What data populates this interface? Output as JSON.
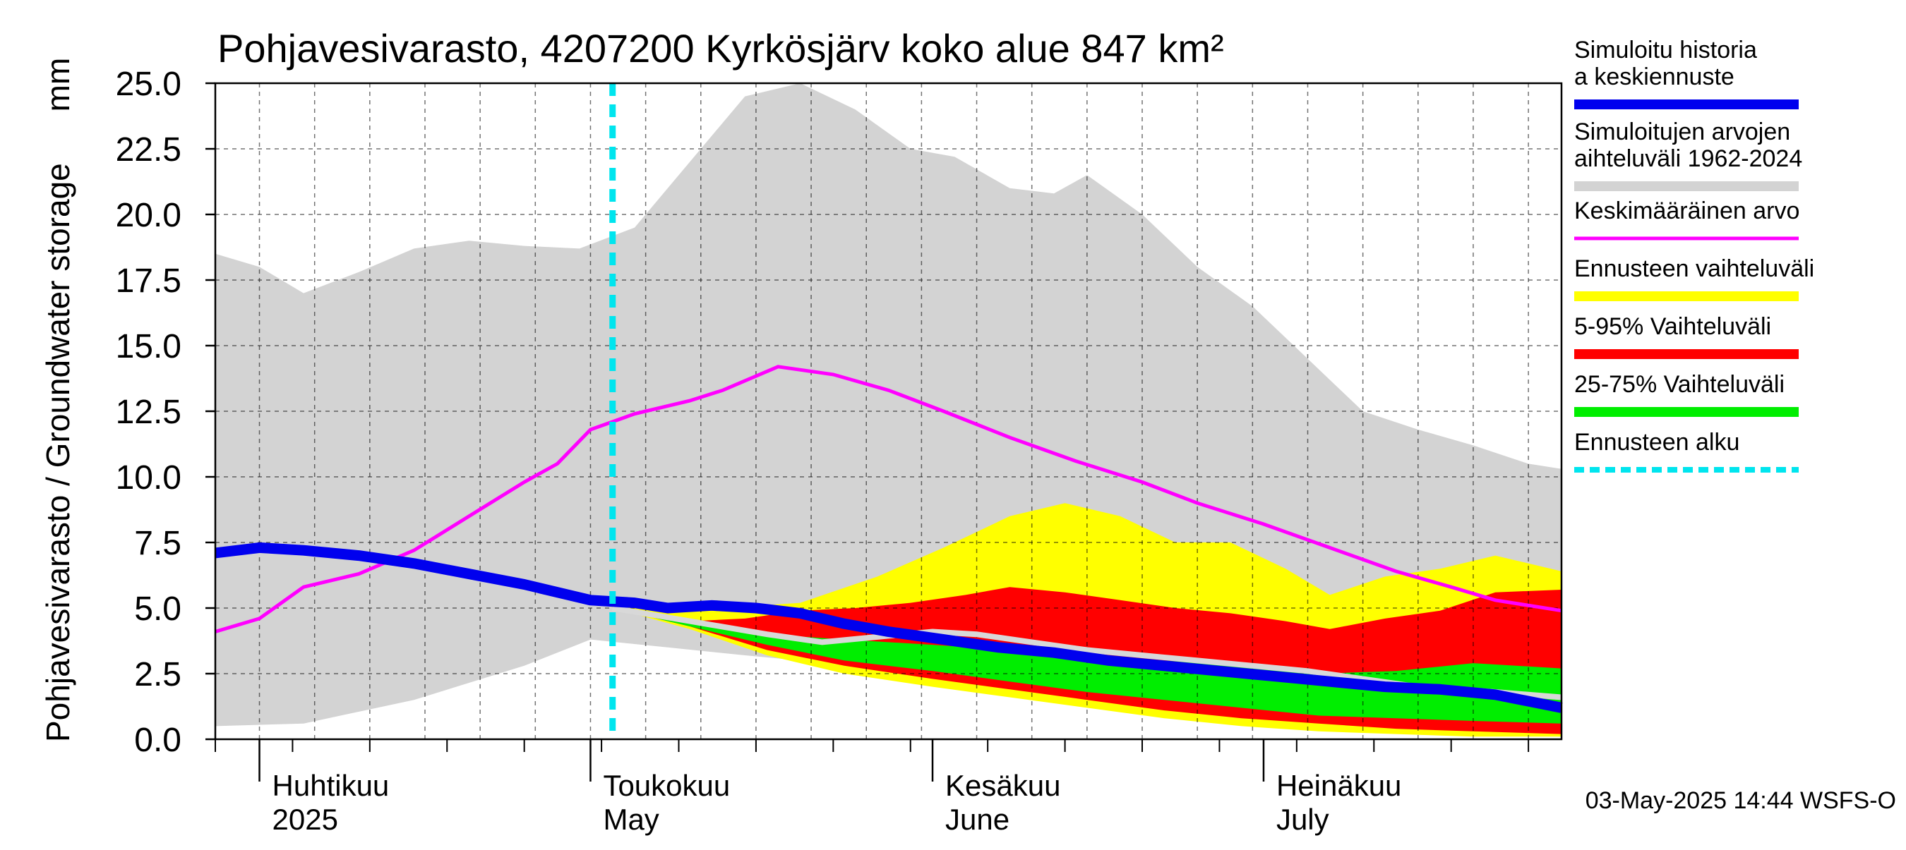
{
  "chart_data": {
    "type": "area",
    "title": "Pohjavesivarasto, 4207200 Kyrkösjärv koko alue 847 km²",
    "ylabel": "Pohjavesivarasto / Groundwater storage",
    "yunit": "mm",
    "ylim": [
      0,
      25
    ],
    "yticks": [
      "0.0",
      "2.5",
      "5.0",
      "7.5",
      "10.0",
      "12.5",
      "15.0",
      "17.5",
      "20.0",
      "22.5",
      "25.0"
    ],
    "grid": true,
    "xlim": [
      "2025-03-28",
      "2025-07-28"
    ],
    "months": [
      {
        "date": "2025-04-01",
        "fi": "Huhtikuu",
        "en": "2025"
      },
      {
        "date": "2025-05-01",
        "fi": "Toukokuu",
        "en": "May"
      },
      {
        "date": "2025-06-01",
        "fi": "Kesäkuu",
        "en": "June"
      },
      {
        "date": "2025-07-01",
        "fi": "Heinäkuu",
        "en": "July"
      }
    ],
    "forecast_start": "2025-05-03",
    "colors": {
      "history": "#0000ee",
      "range": "#d3d3d3",
      "mean": "#ff00ff",
      "forecast_range": "#ffff00",
      "p5_95": "#ff0000",
      "p25_75": "#00ee00",
      "forecast_start": "#00e5ee",
      "median": "#d8d8d8"
    },
    "legend": [
      {
        "label": "Simuloitu historia ja keskiennuste",
        "key": "history"
      },
      {
        "label": "Simuloitujen arvojen vaihteluväli 1962-2024",
        "key": "range"
      },
      {
        "label": "Keskimääräinen arvo",
        "key": "mean"
      },
      {
        "label": "Ennusteen vaihteluväli",
        "key": "forecast_range"
      },
      {
        "label": "5-95% Vaihteluväli",
        "key": "p5_95"
      },
      {
        "label": "25-75% Vaihteluväli",
        "key": "p25_75"
      },
      {
        "label": "Ennusteen alku",
        "key": "forecast_start"
      }
    ],
    "footer": "03-May-2025 14:44 WSFS-O",
    "series": {
      "range_upper": [
        [
          "2025-03-28",
          18.5
        ],
        [
          "2025-04-01",
          18.0
        ],
        [
          "2025-04-05",
          17.0
        ],
        [
          "2025-04-10",
          17.8
        ],
        [
          "2025-04-15",
          18.7
        ],
        [
          "2025-04-20",
          19.0
        ],
        [
          "2025-04-25",
          18.8
        ],
        [
          "2025-04-30",
          18.7
        ],
        [
          "2025-05-05",
          19.5
        ],
        [
          "2025-05-10",
          22.0
        ],
        [
          "2025-05-15",
          24.5
        ],
        [
          "2025-05-20",
          25.0
        ],
        [
          "2025-05-25",
          24.0
        ],
        [
          "2025-05-30",
          22.5
        ],
        [
          "2025-06-03",
          22.2
        ],
        [
          "2025-06-08",
          21.0
        ],
        [
          "2025-06-12",
          20.8
        ],
        [
          "2025-06-15",
          21.5
        ],
        [
          "2025-06-20",
          20.0
        ],
        [
          "2025-06-25",
          18.0
        ],
        [
          "2025-06-30",
          16.5
        ],
        [
          "2025-07-05",
          14.5
        ],
        [
          "2025-07-10",
          12.5
        ],
        [
          "2025-07-15",
          11.8
        ],
        [
          "2025-07-20",
          11.2
        ],
        [
          "2025-07-25",
          10.5
        ],
        [
          "2025-07-28",
          10.3
        ]
      ],
      "range_lower": [
        [
          "2025-03-28",
          0.5
        ],
        [
          "2025-04-05",
          0.6
        ],
        [
          "2025-04-15",
          1.5
        ],
        [
          "2025-04-25",
          2.8
        ],
        [
          "2025-05-01",
          3.8
        ],
        [
          "2025-05-08",
          3.5
        ],
        [
          "2025-05-15",
          3.2
        ],
        [
          "2025-05-20",
          3.0
        ],
        [
          "2025-05-25",
          3.1
        ],
        [
          "2025-06-01",
          2.8
        ],
        [
          "2025-06-10",
          2.3
        ],
        [
          "2025-06-20",
          1.7
        ],
        [
          "2025-07-01",
          1.2
        ],
        [
          "2025-07-10",
          0.6
        ],
        [
          "2025-07-20",
          0.2
        ],
        [
          "2025-07-28",
          0.1
        ]
      ],
      "mean": [
        [
          "2025-03-28",
          4.1
        ],
        [
          "2025-04-01",
          4.6
        ],
        [
          "2025-04-05",
          5.8
        ],
        [
          "2025-04-10",
          6.3
        ],
        [
          "2025-04-15",
          7.2
        ],
        [
          "2025-04-20",
          8.5
        ],
        [
          "2025-04-25",
          9.8
        ],
        [
          "2025-04-28",
          10.5
        ],
        [
          "2025-05-01",
          11.8
        ],
        [
          "2025-05-05",
          12.4
        ],
        [
          "2025-05-10",
          12.9
        ],
        [
          "2025-05-13",
          13.3
        ],
        [
          "2025-05-18",
          14.2
        ],
        [
          "2025-05-23",
          13.9
        ],
        [
          "2025-05-28",
          13.3
        ],
        [
          "2025-06-02",
          12.5
        ],
        [
          "2025-06-08",
          11.5
        ],
        [
          "2025-06-14",
          10.6
        ],
        [
          "2025-06-20",
          9.8
        ],
        [
          "2025-06-25",
          9.0
        ],
        [
          "2025-07-01",
          8.2
        ],
        [
          "2025-07-07",
          7.3
        ],
        [
          "2025-07-13",
          6.4
        ],
        [
          "2025-07-18",
          5.8
        ],
        [
          "2025-07-22",
          5.3
        ],
        [
          "2025-07-28",
          4.9
        ]
      ],
      "history": [
        [
          "2025-03-28",
          7.1
        ],
        [
          "2025-04-01",
          7.3
        ],
        [
          "2025-04-05",
          7.2
        ],
        [
          "2025-04-10",
          7.0
        ],
        [
          "2025-04-15",
          6.7
        ],
        [
          "2025-04-20",
          6.3
        ],
        [
          "2025-04-25",
          5.9
        ],
        [
          "2025-04-28",
          5.6
        ],
        [
          "2025-05-01",
          5.3
        ],
        [
          "2025-05-05",
          5.2
        ],
        [
          "2025-05-08",
          5.0
        ],
        [
          "2025-05-12",
          5.1
        ],
        [
          "2025-05-16",
          5.0
        ],
        [
          "2025-05-20",
          4.8
        ],
        [
          "2025-05-24",
          4.4
        ],
        [
          "2025-05-28",
          4.1
        ],
        [
          "2025-06-02",
          3.8
        ],
        [
          "2025-06-07",
          3.5
        ],
        [
          "2025-06-12",
          3.3
        ],
        [
          "2025-06-17",
          3.0
        ],
        [
          "2025-06-22",
          2.8
        ],
        [
          "2025-06-27",
          2.6
        ],
        [
          "2025-07-02",
          2.4
        ],
        [
          "2025-07-07",
          2.2
        ],
        [
          "2025-07-12",
          2.0
        ],
        [
          "2025-07-17",
          1.9
        ],
        [
          "2025-07-22",
          1.7
        ],
        [
          "2025-07-28",
          1.2
        ]
      ],
      "forecast_upper": [
        [
          "2025-05-03",
          5.1
        ],
        [
          "2025-05-13",
          5.0
        ],
        [
          "2025-05-20",
          5.2
        ],
        [
          "2025-05-27",
          6.2
        ],
        [
          "2025-06-02",
          7.3
        ],
        [
          "2025-06-08",
          8.5
        ],
        [
          "2025-06-13",
          9.0
        ],
        [
          "2025-06-18",
          8.5
        ],
        [
          "2025-06-23",
          7.5
        ],
        [
          "2025-06-28",
          7.5
        ],
        [
          "2025-07-03",
          6.5
        ],
        [
          "2025-07-07",
          5.5
        ],
        [
          "2025-07-12",
          6.2
        ],
        [
          "2025-07-17",
          6.5
        ],
        [
          "2025-07-22",
          7.0
        ],
        [
          "2025-07-28",
          6.4
        ]
      ],
      "forecast_lower": [
        [
          "2025-05-03",
          5.0
        ],
        [
          "2025-05-10",
          4.2
        ],
        [
          "2025-05-17",
          3.2
        ],
        [
          "2025-05-24",
          2.5
        ],
        [
          "2025-06-01",
          2.0
        ],
        [
          "2025-06-08",
          1.6
        ],
        [
          "2025-06-15",
          1.2
        ],
        [
          "2025-06-22",
          0.8
        ],
        [
          "2025-06-29",
          0.5
        ],
        [
          "2025-07-06",
          0.3
        ],
        [
          "2025-07-13",
          0.2
        ],
        [
          "2025-07-20",
          0.1
        ],
        [
          "2025-07-28",
          0.1
        ]
      ],
      "p95": [
        [
          "2025-05-03",
          5.0
        ],
        [
          "2025-05-10",
          4.5
        ],
        [
          "2025-05-15",
          4.6
        ],
        [
          "2025-05-20",
          4.9
        ],
        [
          "2025-05-25",
          5.0
        ],
        [
          "2025-05-30",
          5.2
        ],
        [
          "2025-06-04",
          5.5
        ],
        [
          "2025-06-08",
          5.8
        ],
        [
          "2025-06-13",
          5.6
        ],
        [
          "2025-06-18",
          5.3
        ],
        [
          "2025-06-23",
          5.0
        ],
        [
          "2025-06-28",
          4.8
        ],
        [
          "2025-07-03",
          4.5
        ],
        [
          "2025-07-07",
          4.2
        ],
        [
          "2025-07-12",
          4.6
        ],
        [
          "2025-07-17",
          4.9
        ],
        [
          "2025-07-22",
          5.6
        ],
        [
          "2025-07-28",
          5.7
        ]
      ],
      "p5": [
        [
          "2025-05-03",
          5.0
        ],
        [
          "2025-05-10",
          4.3
        ],
        [
          "2025-05-17",
          3.4
        ],
        [
          "2025-05-24",
          2.8
        ],
        [
          "2025-06-01",
          2.3
        ],
        [
          "2025-06-08",
          1.9
        ],
        [
          "2025-06-15",
          1.5
        ],
        [
          "2025-06-22",
          1.1
        ],
        [
          "2025-06-29",
          0.8
        ],
        [
          "2025-07-06",
          0.6
        ],
        [
          "2025-07-13",
          0.4
        ],
        [
          "2025-07-20",
          0.3
        ],
        [
          "2025-07-28",
          0.2
        ]
      ],
      "p75": [
        [
          "2025-05-03",
          5.0
        ],
        [
          "2025-05-10",
          4.4
        ],
        [
          "2025-05-17",
          4.0
        ],
        [
          "2025-05-24",
          3.8
        ],
        [
          "2025-06-01",
          3.6
        ],
        [
          "2025-06-08",
          3.4
        ],
        [
          "2025-06-15",
          3.2
        ],
        [
          "2025-06-22",
          3.0
        ],
        [
          "2025-06-29",
          2.8
        ],
        [
          "2025-07-06",
          2.5
        ],
        [
          "2025-07-13",
          2.6
        ],
        [
          "2025-07-20",
          2.9
        ],
        [
          "2025-07-28",
          2.7
        ]
      ],
      "p25": [
        [
          "2025-05-03",
          5.0
        ],
        [
          "2025-05-10",
          4.3
        ],
        [
          "2025-05-17",
          3.6
        ],
        [
          "2025-05-24",
          3.0
        ],
        [
          "2025-06-01",
          2.6
        ],
        [
          "2025-06-08",
          2.2
        ],
        [
          "2025-06-15",
          1.8
        ],
        [
          "2025-06-22",
          1.5
        ],
        [
          "2025-06-29",
          1.2
        ],
        [
          "2025-07-06",
          0.9
        ],
        [
          "2025-07-13",
          0.8
        ],
        [
          "2025-07-20",
          0.7
        ],
        [
          "2025-07-28",
          0.6
        ]
      ],
      "median": [
        [
          "2025-05-03",
          5.0
        ],
        [
          "2025-05-10",
          4.5
        ],
        [
          "2025-05-17",
          4.0
        ],
        [
          "2025-05-22",
          3.7
        ],
        [
          "2025-05-27",
          3.9
        ],
        [
          "2025-06-01",
          4.1
        ],
        [
          "2025-06-05",
          4.0
        ],
        [
          "2025-06-10",
          3.7
        ],
        [
          "2025-06-15",
          3.4
        ],
        [
          "2025-06-20",
          3.2
        ],
        [
          "2025-06-25",
          3.0
        ],
        [
          "2025-06-30",
          2.8
        ],
        [
          "2025-07-05",
          2.6
        ],
        [
          "2025-07-10",
          2.3
        ],
        [
          "2025-07-15",
          2.0
        ],
        [
          "2025-07-22",
          1.8
        ],
        [
          "2025-07-28",
          1.6
        ]
      ]
    }
  }
}
